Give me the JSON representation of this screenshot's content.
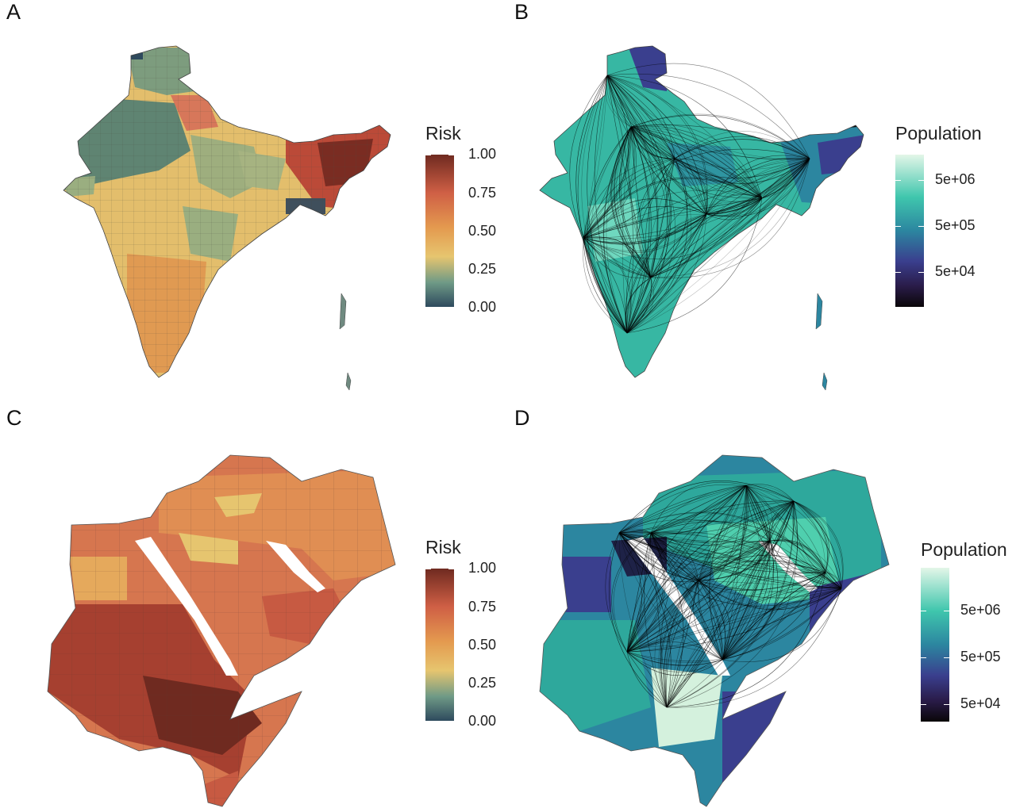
{
  "panels": [
    {
      "letter": "A",
      "region": "south-asia",
      "variable": "risk",
      "legend": {
        "title": "Risk",
        "ticks": [
          "1.00",
          "0.75",
          "0.50",
          "0.25",
          "0.00"
        ],
        "scale": "continuous",
        "colors": [
          "#2e4a5e",
          "#6f9a86",
          "#e6c56f",
          "#e49a4f",
          "#cf5f45",
          "#6f2a20"
        ]
      },
      "network_overlay": false
    },
    {
      "letter": "B",
      "region": "south-asia",
      "variable": "population",
      "legend": {
        "title": "Population",
        "ticks": [
          "5e+06",
          "5e+05",
          "5e+04"
        ],
        "scale": "log",
        "colors": [
          "#e3f6e8",
          "#3fc6ad",
          "#2c86a0",
          "#3a3f8e",
          "#2a1c4a",
          "#0a0608"
        ]
      },
      "network_overlay": true
    },
    {
      "letter": "C",
      "region": "east-africa-middle-east",
      "variable": "risk",
      "legend": {
        "title": "Risk",
        "ticks": [
          "1.00",
          "0.75",
          "0.50",
          "0.25",
          "0.00"
        ],
        "scale": "continuous",
        "colors": [
          "#2e4a5e",
          "#6f9a86",
          "#e6c56f",
          "#e49a4f",
          "#cf5f45",
          "#6f2a20"
        ]
      },
      "network_overlay": false
    },
    {
      "letter": "D",
      "region": "east-africa-middle-east",
      "variable": "population",
      "legend": {
        "title": "Population",
        "ticks": [
          "5e+06",
          "5e+05",
          "5e+04"
        ],
        "scale": "log",
        "colors": [
          "#e3f6e8",
          "#3fc6ad",
          "#2c86a0",
          "#3a3f8e",
          "#2a1c4a",
          "#0a0608"
        ]
      },
      "network_overlay": true
    }
  ]
}
